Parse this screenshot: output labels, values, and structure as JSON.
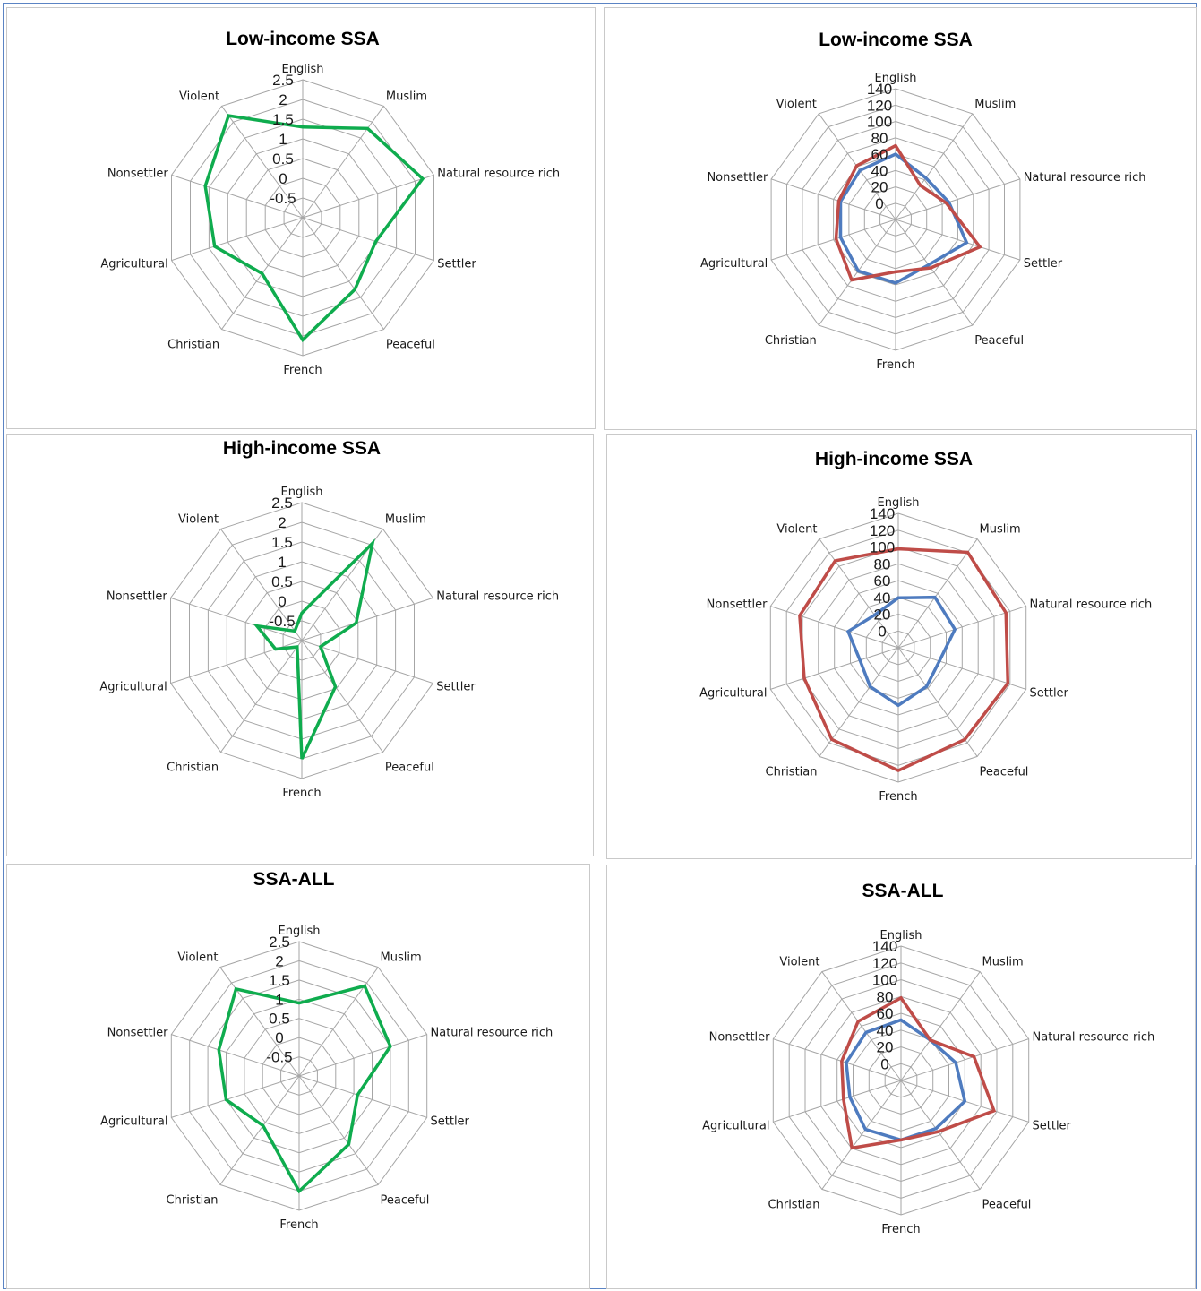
{
  "colors": {
    "green": "#0fac4e",
    "blue": "#4e7bbf",
    "red": "#bf4c48",
    "grid": "#a6a6a6"
  },
  "chart_data": [
    {
      "panel": "left-top",
      "type": "radar",
      "title": "Low-income SSA",
      "categories": [
        "English",
        "Muslim",
        "Natural resource rich",
        "Settler",
        "Peaceful",
        "French",
        "Christian",
        "Agricultural",
        "Nonsettler",
        "Violent"
      ],
      "ticks": [
        "2.5",
        "2",
        "1.5",
        "1",
        "0.5",
        "0",
        "-0.5"
      ],
      "rlim": [
        -1,
        2.5
      ],
      "series": [
        {
          "color": "green",
          "values": [
            1.3,
            1.8,
            2.2,
            0.95,
            1.25,
            2.1,
            0.75,
            1.35,
            1.6,
            2.2
          ]
        }
      ]
    },
    {
      "panel": "right-top",
      "type": "radar",
      "title": "Low-income SSA",
      "categories": [
        "English",
        "Muslim",
        "Natural resource rich",
        "Settler",
        "Peaceful",
        "French",
        "Christian",
        "Agricultural",
        "Nonsettler",
        "Violent"
      ],
      "ticks": [
        "140",
        "120",
        "100",
        "80",
        "60",
        "40",
        "20",
        "0"
      ],
      "rlim": [
        0,
        140
      ],
      "series": [
        {
          "color": "blue",
          "values": [
            70,
            55,
            60,
            80,
            60,
            68,
            68,
            62,
            62,
            65
          ]
        },
        {
          "color": "red",
          "values": [
            79,
            45,
            57,
            95,
            64,
            56,
            80,
            67,
            64,
            71
          ]
        }
      ]
    },
    {
      "panel": "left-middle",
      "type": "radar",
      "title": "High-income SSA",
      "categories": [
        "English",
        "Muslim",
        "Natural resource rich",
        "Settler",
        "Peaceful",
        "French",
        "Christian",
        "Agricultural",
        "Nonsettler",
        "Violent"
      ],
      "ticks": [
        "2.5",
        "2",
        "1.5",
        "1",
        "0.5",
        "0",
        "-0.5"
      ],
      "rlim": [
        -1,
        2.5
      ],
      "series": [
        {
          "color": "green",
          "values": [
            -0.3,
            2.05,
            0.45,
            -0.5,
            0.45,
            2.0,
            -0.8,
            -0.3,
            0.2,
            -0.7
          ]
        }
      ]
    },
    {
      "panel": "right-middle",
      "type": "radar",
      "title": "High-income SSA",
      "categories": [
        "English",
        "Muslim",
        "Natural resource rich",
        "Settler",
        "Peaceful",
        "French",
        "Christian",
        "Agricultural",
        "Nonsettler",
        "Violent"
      ],
      "ticks": [
        "140",
        "120",
        "100",
        "80",
        "60",
        "40",
        "20",
        "0"
      ],
      "rlim": [
        0,
        140
      ],
      "series": [
        {
          "color": "blue",
          "values": [
            52,
            65,
            62,
            45,
            50,
            60,
            50,
            42,
            55,
            42
          ]
        },
        {
          "color": "red",
          "values": [
            103,
            123,
            118,
            120,
            118,
            128,
            118,
            103,
            108,
            112
          ]
        }
      ]
    },
    {
      "panel": "left-bottom",
      "type": "radar",
      "title": "SSA-ALL",
      "categories": [
        "English",
        "Muslim",
        "Natural resource rich",
        "Settler",
        "Peaceful",
        "French",
        "Christian",
        "Agricultural",
        "Nonsettler",
        "Violent"
      ],
      "ticks": [
        "2.5",
        "2",
        "1.5",
        "1",
        "0.5",
        "0",
        "-0.5"
      ],
      "rlim": [
        -1,
        2.5
      ],
      "series": [
        {
          "color": "green",
          "values": [
            0.9,
            1.9,
            1.5,
            0.6,
            1.2,
            2.0,
            0.6,
            1.0,
            1.2,
            1.8
          ]
        }
      ]
    },
    {
      "panel": "right-bottom",
      "type": "radar",
      "title": "SSA-ALL",
      "categories": [
        "English",
        "Muslim",
        "Natural resource rich",
        "Settler",
        "Peaceful",
        "French",
        "Christian",
        "Agricultural",
        "Nonsettler",
        "Violent"
      ],
      "ticks": [
        "140",
        "120",
        "100",
        "80",
        "60",
        "40",
        "20",
        "0"
      ],
      "rlim": [
        0,
        140
      ],
      "series": [
        {
          "color": "blue",
          "values": [
            63,
            52,
            60,
            70,
            62,
            62,
            63,
            56,
            60,
            62
          ]
        },
        {
          "color": "red",
          "values": [
            86,
            52,
            80,
            102,
            66,
            62,
            87,
            63,
            65,
            76
          ]
        }
      ]
    }
  ]
}
